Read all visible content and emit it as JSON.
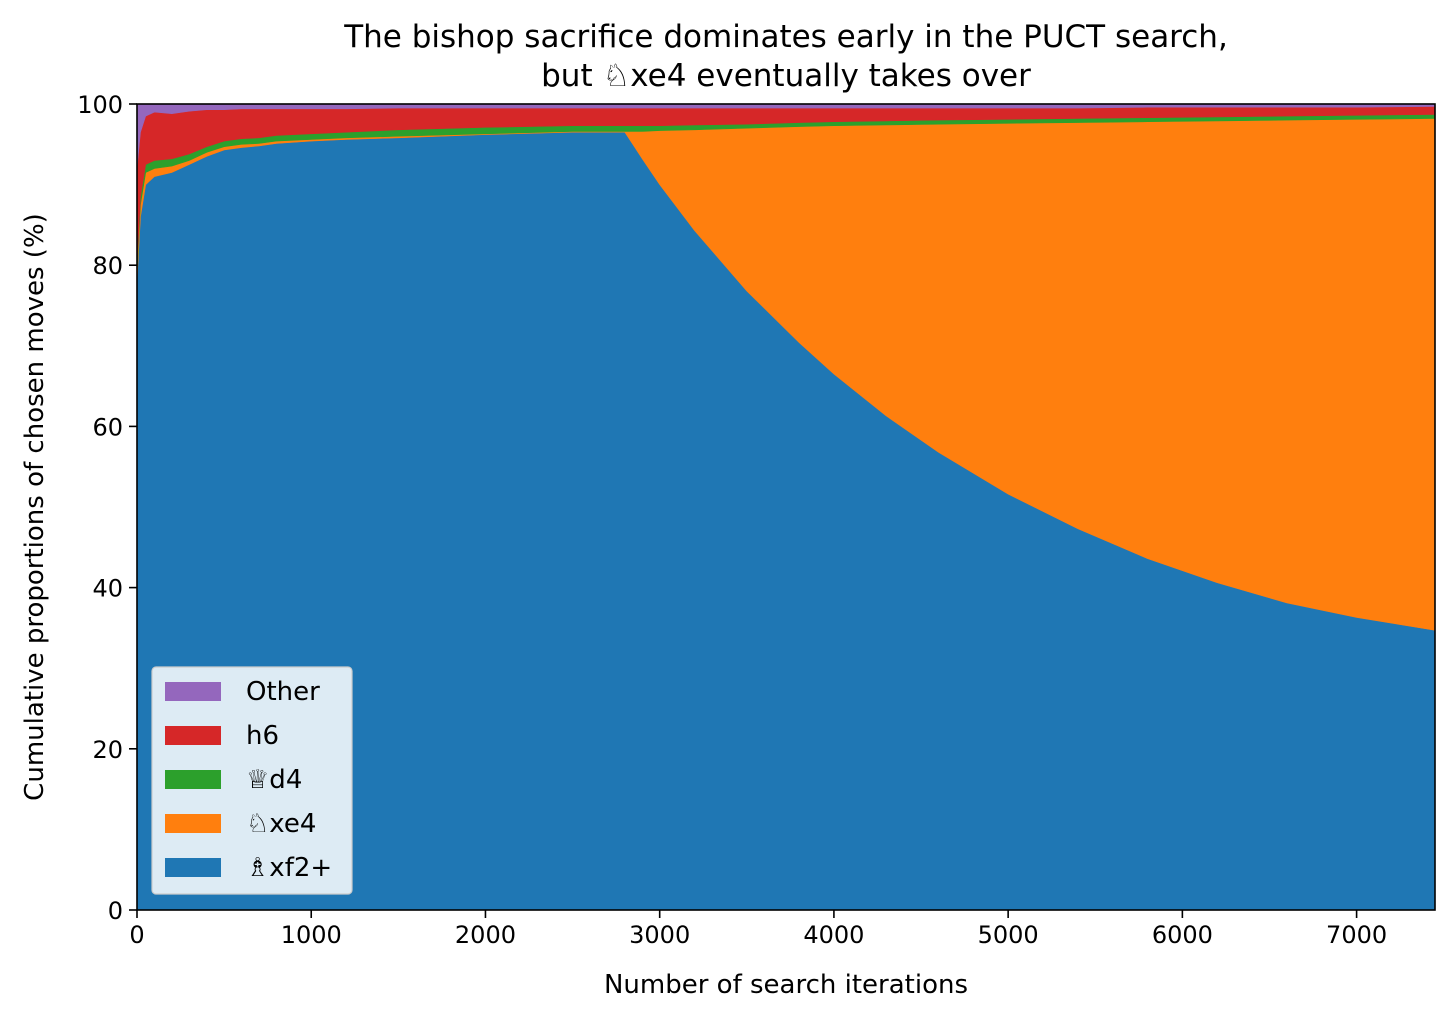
{
  "chart_data": {
    "type": "area",
    "stacked": true,
    "title_lines": [
      "The bishop sacrifice dominates early in the PUCT search,",
      "but ♘xe4 eventually takes over"
    ],
    "xlabel": "Number of search iterations",
    "ylabel": "Cumulative proportions of chosen moves (%)",
    "xlim": [
      0,
      7450
    ],
    "ylim": [
      0,
      100
    ],
    "xticks": [
      0,
      1000,
      2000,
      3000,
      4000,
      5000,
      6000,
      7000
    ],
    "yticks": [
      0,
      20,
      40,
      60,
      80,
      100
    ],
    "grid": false,
    "legend_position": "lower-left",
    "x": [
      0,
      20,
      50,
      100,
      200,
      300,
      400,
      500,
      600,
      700,
      800,
      1000,
      1200,
      1500,
      2000,
      2500,
      2800,
      2900,
      3000,
      3200,
      3500,
      3800,
      4000,
      4300,
      4600,
      5000,
      5400,
      5800,
      6200,
      6600,
      7000,
      7450
    ],
    "series": [
      {
        "name": "♗xf2+",
        "color": "#1f77b4",
        "values": [
          78,
          86,
          90,
          91,
          91.5,
          92.5,
          93.5,
          94.3,
          94.6,
          94.8,
          95.1,
          95.4,
          95.6,
          95.8,
          96.2,
          96.5,
          96.5,
          93.2,
          90.0,
          84.3,
          76.8,
          70.4,
          66.5,
          61.3,
          56.8,
          51.6,
          47.3,
          43.6,
          40.6,
          38.1,
          36.3,
          34.7
        ]
      },
      {
        "name": "♘xe4",
        "color": "#ff7f0e",
        "values": [
          1,
          1.5,
          1.5,
          1,
          0.8,
          0.5,
          0.5,
          0.4,
          0.4,
          0.3,
          0.3,
          0.2,
          0.2,
          0.2,
          0.1,
          0.1,
          0.1,
          3.4,
          6.7,
          12.5,
          20.2,
          26.8,
          30.8,
          36.1,
          40.7,
          46.0,
          50.4,
          54.2,
          57.3,
          59.9,
          61.8,
          63.5
        ]
      },
      {
        "name": "♕d4",
        "color": "#2ca02c",
        "values": [
          1,
          1,
          1,
          1,
          0.9,
          0.8,
          0.7,
          0.7,
          0.7,
          0.7,
          0.7,
          0.7,
          0.7,
          0.8,
          0.8,
          0.7,
          0.7,
          0.7,
          0.6,
          0.6,
          0.5,
          0.5,
          0.5,
          0.5,
          0.5,
          0.5,
          0.5,
          0.5,
          0.5,
          0.5,
          0.5,
          0.5
        ]
      },
      {
        "name": "h6",
        "color": "#d62728",
        "values": [
          12,
          8,
          6,
          6,
          5.6,
          5.3,
          4.6,
          3.9,
          3.7,
          3.6,
          3.3,
          3.1,
          2.9,
          2.7,
          2.4,
          2.2,
          2.2,
          2.2,
          2.2,
          2.1,
          2.0,
          1.8,
          1.7,
          1.6,
          1.5,
          1.4,
          1.3,
          1.3,
          1.2,
          1.1,
          1.0,
          1.0
        ]
      },
      {
        "name": "Other",
        "color": "#9467bd",
        "values": [
          8,
          3.5,
          1.5,
          1,
          1.2,
          0.9,
          0.7,
          0.7,
          0.6,
          0.6,
          0.6,
          0.6,
          0.6,
          0.5,
          0.5,
          0.5,
          0.5,
          0.5,
          0.5,
          0.5,
          0.5,
          0.5,
          0.5,
          0.5,
          0.5,
          0.5,
          0.5,
          0.4,
          0.4,
          0.4,
          0.4,
          0.3
        ]
      }
    ]
  }
}
